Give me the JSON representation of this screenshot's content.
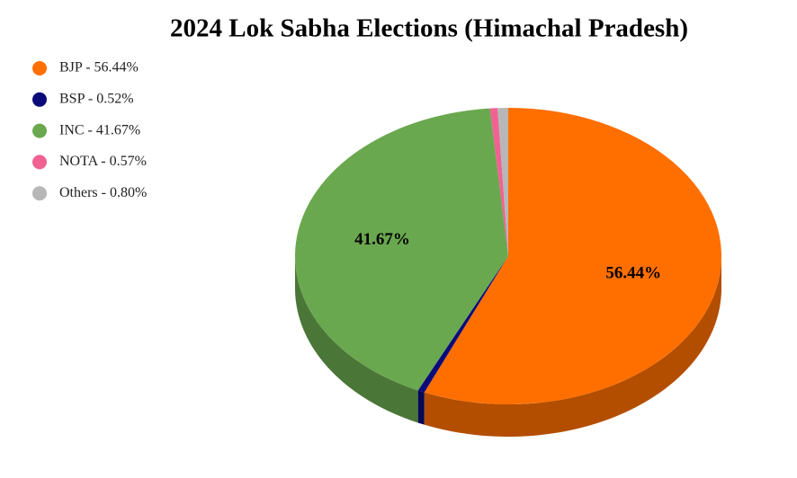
{
  "chart_data": {
    "type": "pie",
    "title": "2024 Lok Sabha Elections (Himachal Pradesh)",
    "categories": [
      "BJP - 56.44%",
      "BSP - 0.52%",
      "INC - 41.67%",
      "NOTA - 0.57%",
      "Others - 0.80%"
    ],
    "values": [
      56.44,
      0.52,
      41.67,
      0.57,
      0.8
    ],
    "value_labels": [
      "56.44%",
      null,
      "41.67%",
      null,
      null
    ],
    "colors": [
      "#ff6f00",
      "#0b0b7a",
      "#6aa84f",
      "#f06292",
      "#b7b7b7"
    ],
    "legend": "top-left",
    "three_d": true
  }
}
